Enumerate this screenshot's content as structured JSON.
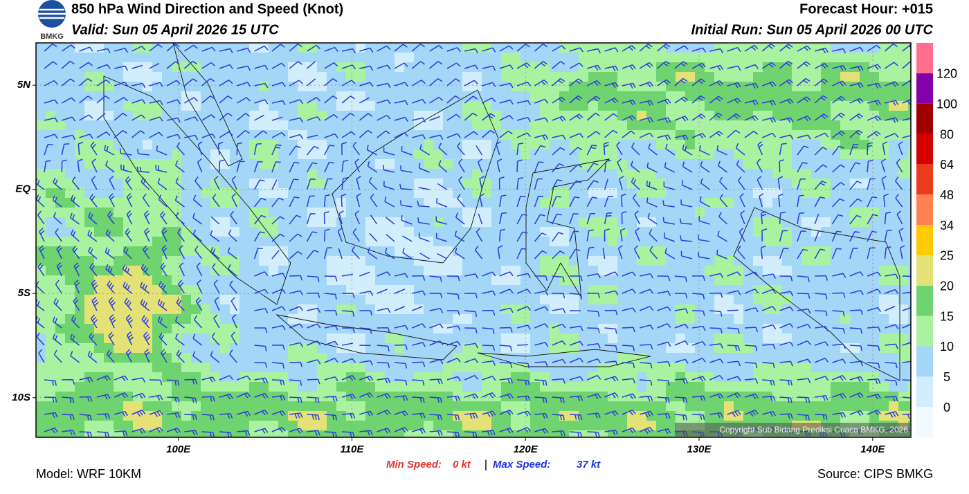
{
  "header": {
    "logo_text": "BMKG",
    "title": "850 hPa Wind Direction and Speed (Knot)",
    "valid": "Valid: Sun 05 April 2026 15 UTC",
    "forecast_hour": "Forecast Hour: +015",
    "initial_run": "Initial Run: Sun 05 April 2026 00 UTC"
  },
  "map": {
    "xlim": [
      91.8,
      142.2
    ],
    "ylim": [
      -11.9,
      7.03
    ],
    "xticks": [
      {
        "value": 100,
        "label": "100E"
      },
      {
        "value": 110,
        "label": "110E"
      },
      {
        "value": 120,
        "label": "120E"
      },
      {
        "value": 130,
        "label": "130E"
      },
      {
        "value": 140,
        "label": "140E"
      }
    ],
    "yticks": [
      {
        "value": 5,
        "label": "5N"
      },
      {
        "value": 0,
        "label": "EQ"
      },
      {
        "value": -5,
        "label": "5S"
      },
      {
        "value": -10,
        "label": "10S"
      }
    ],
    "copyright": "Copyright Sub Bidang Prediksi Cuaca BMKG, 2026"
  },
  "colorbar": {
    "levels": [
      0,
      5,
      10,
      15,
      20,
      25,
      34,
      48,
      64,
      80,
      100,
      120
    ],
    "colors": [
      "#f2f9ff",
      "#d2eefc",
      "#a3d6f7",
      "#a8f2a0",
      "#6fd46f",
      "#e4e276",
      "#ffca00",
      "#ff8050",
      "#ec3a1c",
      "#d40000",
      "#a00000",
      "#8400a8",
      "#ff6e8e"
    ]
  },
  "footer": {
    "min_speed_label": "Min Speed:",
    "min_speed": "0 kt",
    "separator": "|",
    "max_speed_label": "Max Speed:",
    "max_speed": "37 kt",
    "model": "Model: WRF 10KM",
    "source": "Source: CIPS BMKG"
  }
}
